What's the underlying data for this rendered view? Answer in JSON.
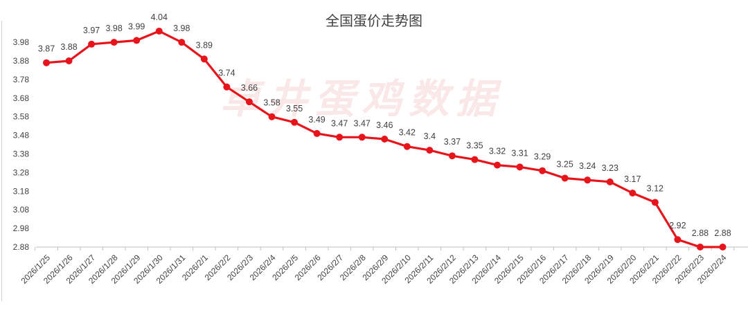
{
  "chart_data": {
    "type": "line",
    "title": "全国蛋价走势图",
    "xlabel": "",
    "ylabel": "",
    "watermark": "卓井蛋鸡数据",
    "x": [
      "2026/1/25",
      "2026/1/26",
      "2026/1/27",
      "2026/1/28",
      "2026/1/29",
      "2026/1/30",
      "2026/1/31",
      "2026/2/1",
      "2026/2/2",
      "2026/2/3",
      "2026/2/4",
      "2026/2/5",
      "2026/2/6",
      "2026/2/7",
      "2026/2/8",
      "2026/2/9",
      "2026/2/10",
      "2026/2/11",
      "2026/2/12",
      "2026/2/13",
      "2026/2/14",
      "2026/2/15",
      "2026/2/16",
      "2026/2/17",
      "2026/2/18",
      "2026/2/19",
      "2026/2/20",
      "2026/2/21",
      "2026/2/22",
      "2026/2/23",
      "2026/2/24"
    ],
    "values": [
      3.87,
      3.88,
      3.97,
      3.98,
      3.99,
      4.04,
      3.98,
      3.89,
      3.74,
      3.66,
      3.58,
      3.55,
      3.49,
      3.47,
      3.47,
      3.46,
      3.42,
      3.4,
      3.37,
      3.35,
      3.32,
      3.31,
      3.29,
      3.25,
      3.24,
      3.23,
      3.17,
      3.12,
      2.92,
      2.88,
      2.88
    ],
    "data_labels": [
      "3.87",
      "3.88",
      "3.97",
      "3.98",
      "3.99",
      "4.04",
      "3.98",
      "3.89",
      "3.74",
      "3.66",
      "3.58",
      "3.55",
      "3.49",
      "3.47",
      "3.47",
      "3.46",
      "3.42",
      "3.4",
      "3.37",
      "3.35",
      "3.32",
      "3.31",
      "3.29",
      "3.25",
      "3.24",
      "3.23",
      "3.17",
      "3.12",
      "2.92",
      "2.88",
      "2.88"
    ],
    "y_ticks": [
      "2.88",
      "2.98",
      "3.08",
      "3.18",
      "3.28",
      "3.38",
      "3.48",
      "3.58",
      "3.68",
      "3.78",
      "3.88",
      "3.98"
    ],
    "ylim": [
      2.88,
      4.08
    ],
    "grid": false,
    "line_color": "#e8141b",
    "marker_color": "#e8141b"
  }
}
